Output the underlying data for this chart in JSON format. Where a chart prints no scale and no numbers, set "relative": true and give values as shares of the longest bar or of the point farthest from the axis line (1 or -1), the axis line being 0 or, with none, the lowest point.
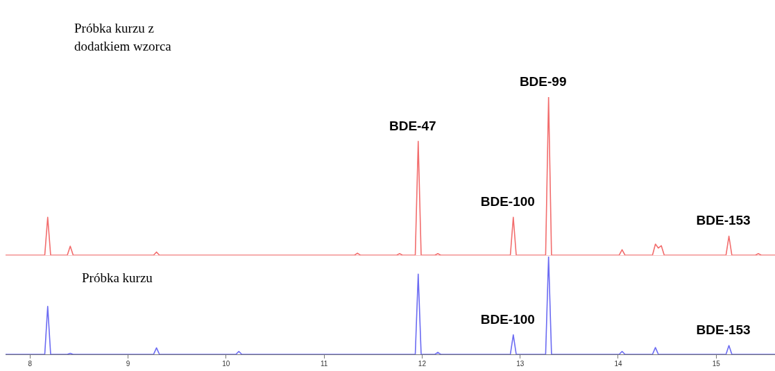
{
  "chart_data": [
    {
      "type": "line",
      "relative": true,
      "xlim": [
        7.75,
        15.6
      ],
      "tick_labels": false,
      "series": [
        {
          "color": "#f26d6d",
          "x": [
            7.75,
            8.15,
            8.18,
            8.21,
            8.38,
            8.41,
            8.44,
            9.26,
            9.29,
            9.32,
            11.31,
            11.34,
            11.37,
            11.74,
            11.77,
            11.8,
            11.93,
            11.96,
            11.99,
            12.13,
            12.16,
            12.19,
            12.9,
            12.93,
            12.96,
            13.26,
            13.29,
            13.32,
            14.01,
            14.04,
            14.07,
            14.35,
            14.38,
            14.41,
            14.44,
            14.47,
            15.1,
            15.13,
            15.16,
            15.4,
            15.43,
            15.46,
            15.6
          ],
          "values": [
            0,
            0,
            0.24,
            0,
            0,
            0.057,
            0,
            0,
            0.02,
            0,
            0,
            0.013,
            0,
            0,
            0.01,
            0,
            0,
            0.72,
            0,
            0,
            0.01,
            0,
            0,
            0.24,
            0,
            0,
            1,
            0,
            0,
            0.035,
            0,
            0,
            0.07,
            0.045,
            0.06,
            0,
            0,
            0.12,
            0,
            0,
            0.01,
            0,
            0
          ]
        }
      ],
      "annotations": [
        "Próbka kurzu z dodatkiem wzorca",
        {
          "text": "BDE-47",
          "x": 11.96,
          "y": 0.72
        },
        {
          "text": "BDE-100",
          "x": 12.93,
          "y": 0.24
        },
        {
          "text": "BDE-99",
          "x": 13.29,
          "y": 1
        },
        {
          "text": "BDE-153",
          "x": 15.13,
          "y": 0.12
        }
      ]
    },
    {
      "type": "line",
      "relative": true,
      "xlim": [
        7.75,
        15.6
      ],
      "xticks": [
        8,
        9,
        10,
        11,
        12,
        13,
        14,
        15
      ],
      "tick_labels": "x",
      "series": [
        {
          "color": "#6b6bf2",
          "x": [
            7.75,
            8.15,
            8.18,
            8.21,
            8.38,
            8.41,
            8.44,
            9.26,
            9.29,
            9.32,
            10.1,
            10.13,
            10.16,
            11.93,
            11.96,
            11.99,
            12.13,
            12.16,
            12.19,
            12.9,
            12.93,
            12.96,
            13.26,
            13.29,
            13.32,
            14.01,
            14.04,
            14.07,
            14.35,
            14.38,
            14.41,
            15.1,
            15.13,
            15.16,
            15.6
          ],
          "values": [
            0,
            0,
            0.49,
            0,
            0,
            0.01,
            0,
            0,
            0.066,
            0,
            0,
            0.03,
            0,
            0,
            0.82,
            0,
            0,
            0.02,
            0,
            0,
            0.2,
            0,
            0,
            1,
            0,
            0,
            0.03,
            0,
            0,
            0.07,
            0,
            0,
            0.09,
            0,
            0
          ]
        }
      ],
      "annotations": [
        "Próbka kurzu",
        {
          "text": "BDE-100",
          "x": 12.93,
          "y": 0.2
        },
        {
          "text": "BDE-153",
          "x": 15.13,
          "y": 0.09
        }
      ]
    }
  ]
}
